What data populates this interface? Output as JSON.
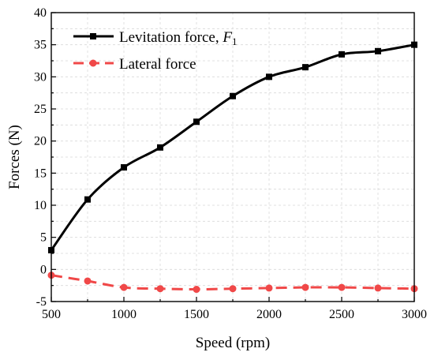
{
  "chart_data": {
    "type": "line",
    "xlabel": "Speed (rpm)",
    "ylabel": "Forces (N)",
    "xlim": [
      500,
      3000
    ],
    "ylim": [
      -5,
      40
    ],
    "x_ticks": [
      500,
      1000,
      1500,
      2000,
      2500,
      3000
    ],
    "y_ticks": [
      -5,
      0,
      5,
      10,
      15,
      20,
      25,
      30,
      35,
      40
    ],
    "grid": true,
    "legend_position": "top-left",
    "series": [
      {
        "name": "Levitation force, ",
        "name_math": "F",
        "name_subscript": "1",
        "color": "#000000",
        "line_style": "solid",
        "marker": "square",
        "x": [
          500,
          750,
          1000,
          1250,
          1500,
          1750,
          2000,
          2250,
          2500,
          2750,
          3000
        ],
        "y": [
          3,
          10.9,
          15.9,
          19,
          23,
          27,
          30,
          31.5,
          33.5,
          34,
          35
        ]
      },
      {
        "name": "Lateral force",
        "color": "#f04848",
        "line_style": "dashed",
        "marker": "circle",
        "x": [
          500,
          750,
          1000,
          1250,
          1500,
          1750,
          2000,
          2250,
          2500,
          2750,
          3000
        ],
        "y": [
          -0.9,
          -1.8,
          -2.8,
          -3.0,
          -3.1,
          -3.0,
          -2.9,
          -2.8,
          -2.8,
          -2.9,
          -3.0
        ]
      }
    ]
  }
}
